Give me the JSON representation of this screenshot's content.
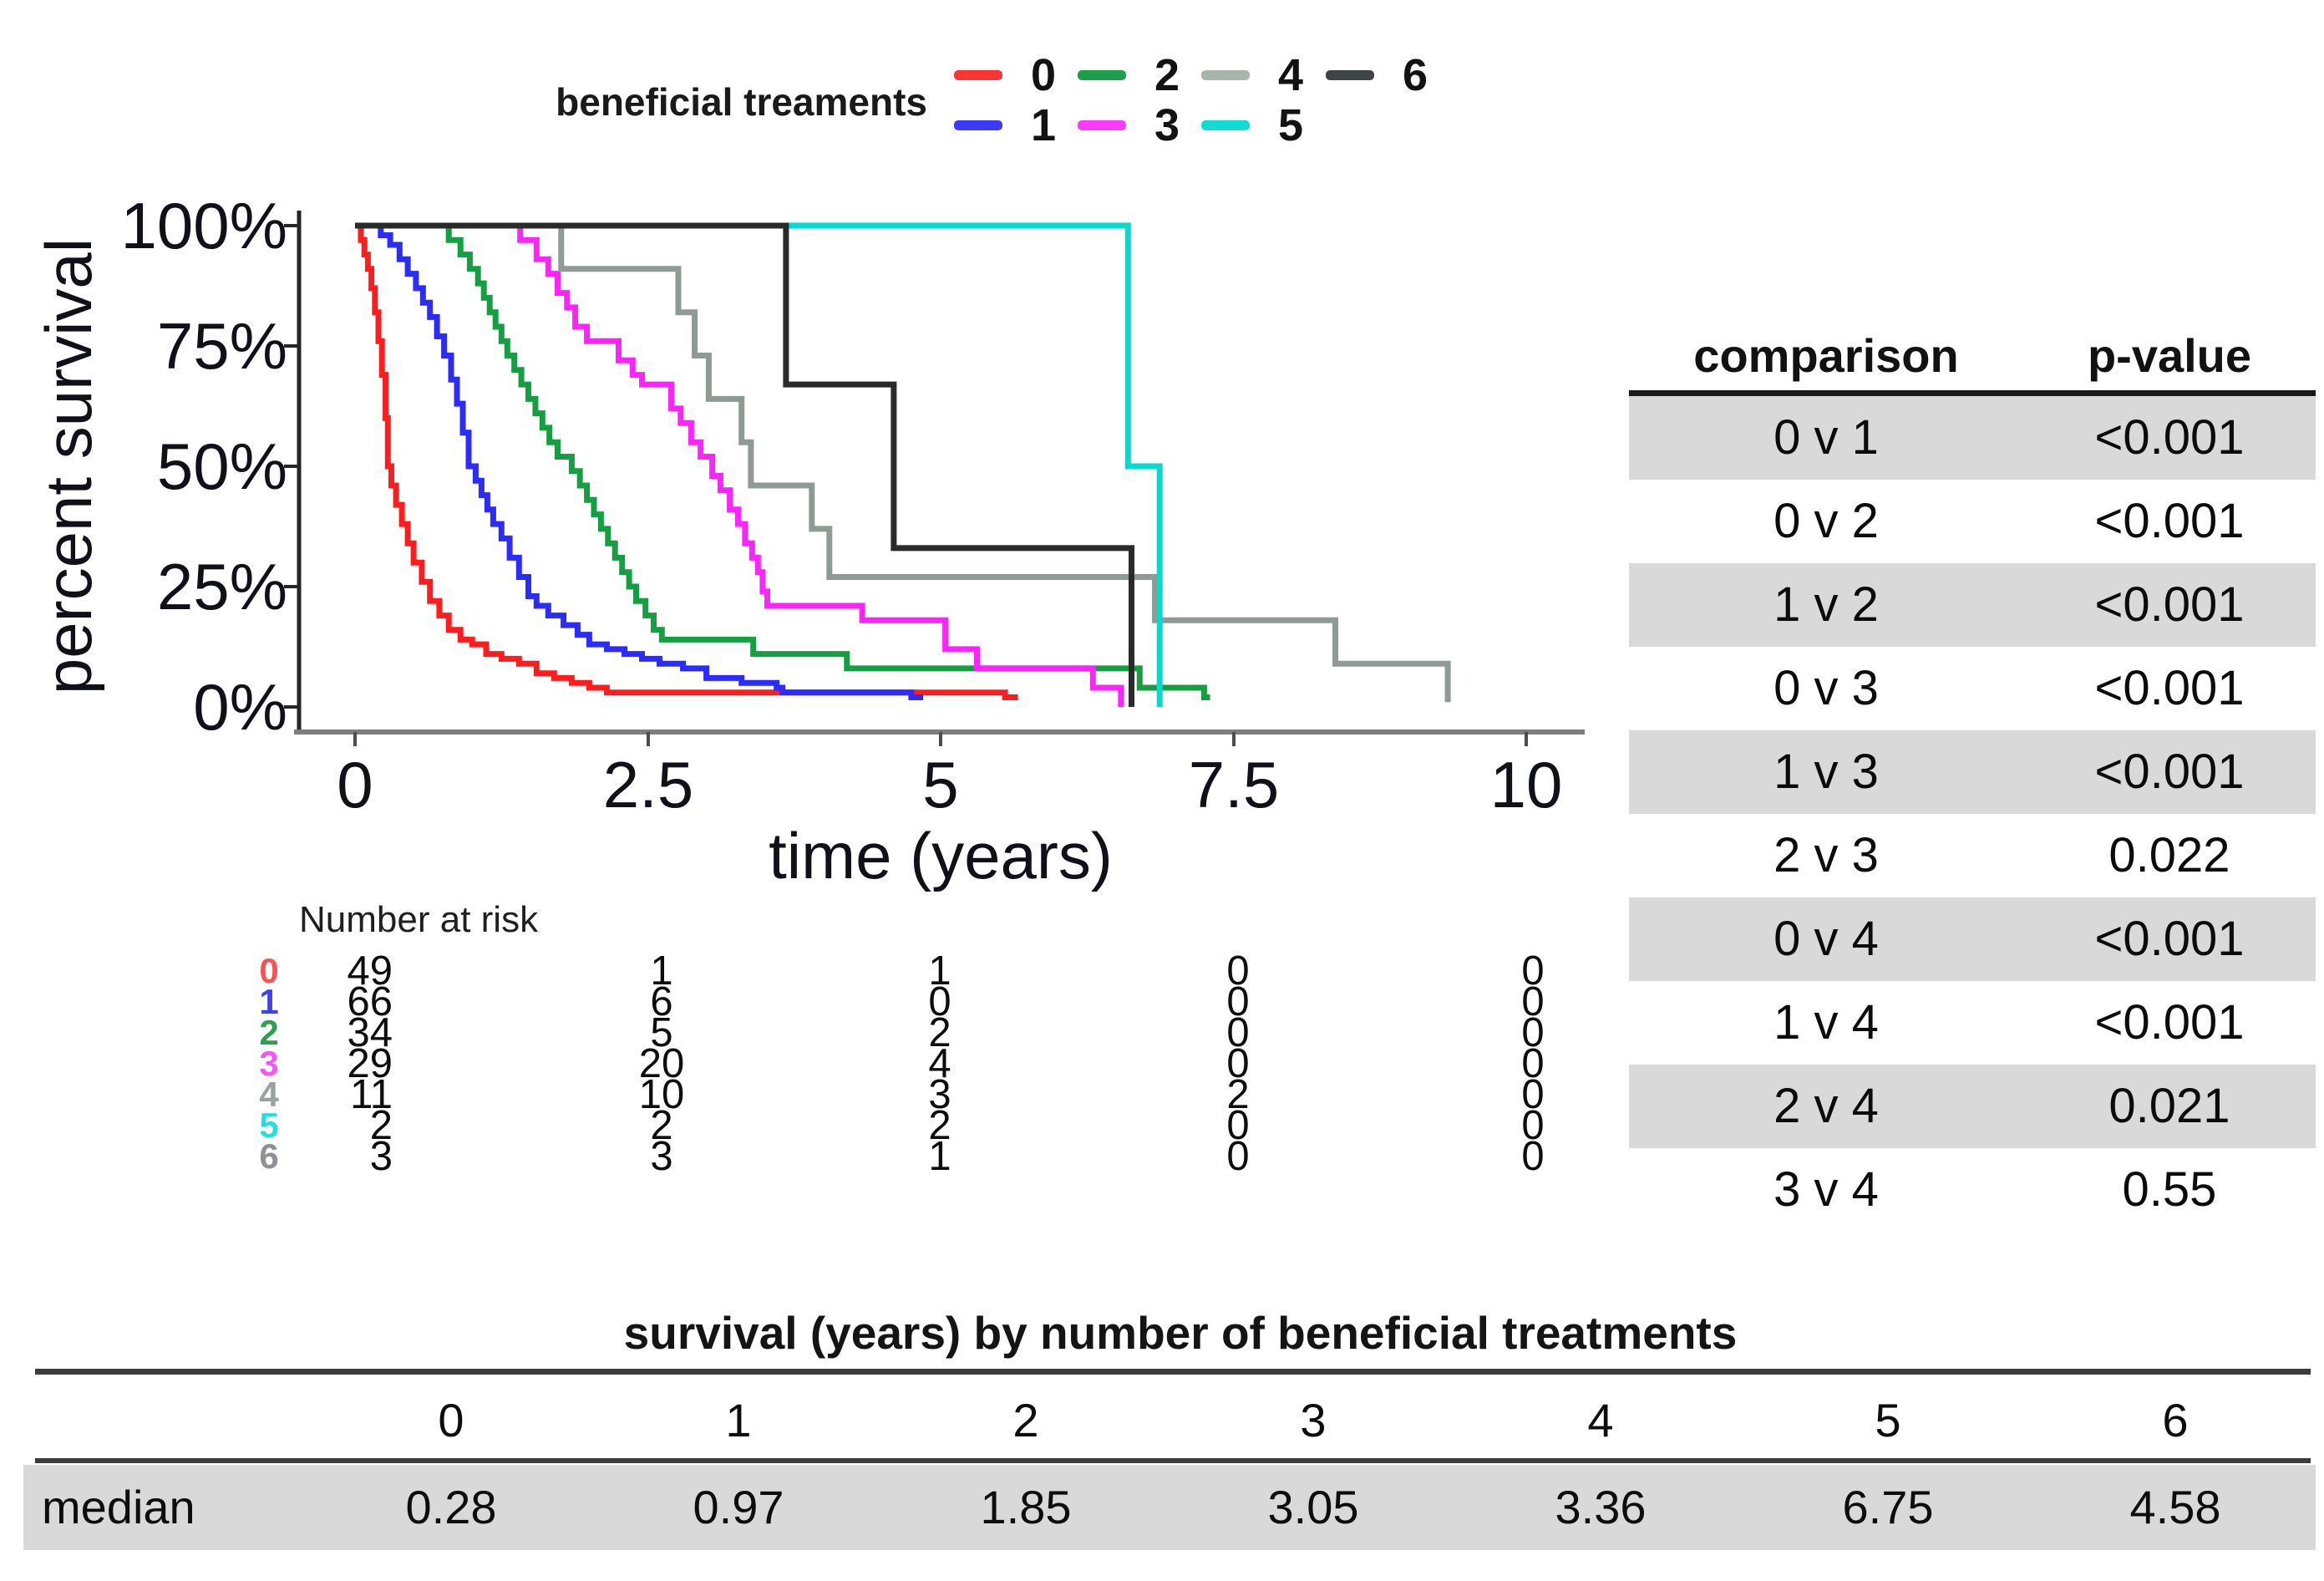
{
  "legend": {
    "title": "beneficial treaments",
    "rows": [
      {
        "items": [
          {
            "label": "0",
            "color": "#fb3535"
          },
          {
            "label": "2",
            "color": "#1d9e4a"
          },
          {
            "label": "4",
            "color": "#aab4af"
          },
          {
            "label": "6",
            "color": "#3f4547"
          }
        ]
      },
      {
        "items": [
          {
            "label": "1",
            "color": "#3a3afc"
          },
          {
            "label": "3",
            "color": "#fb3bfb"
          },
          {
            "label": "5",
            "color": "#11dcd4"
          }
        ]
      }
    ]
  },
  "chart_data": {
    "type": "line",
    "subtype": "kaplan-meier-step-curves",
    "title": "",
    "xlabel": "time (years)",
    "ylabel": "percent survival",
    "xlim": [
      0,
      10
    ],
    "ylim": [
      0,
      100
    ],
    "grid": false,
    "legend_position": "top",
    "x_tick_labels": [
      "0",
      "2.5",
      "5",
      "7.5",
      "10"
    ],
    "y_tick_labels": [
      "100%",
      "75%",
      "50%",
      "25%",
      "0%"
    ],
    "x_ticks": [
      0,
      2.5,
      5,
      7.5,
      10
    ],
    "y_ticks": [
      100,
      75,
      50,
      25,
      0
    ],
    "series": [
      {
        "name": "0",
        "color": "#fc1e1e",
        "median_years": 0.28,
        "end": 5.66,
        "points": [
          [
            0,
            100
          ],
          [
            0.05,
            97
          ],
          [
            0.08,
            94
          ],
          [
            0.11,
            91
          ],
          [
            0.14,
            87
          ],
          [
            0.17,
            82
          ],
          [
            0.2,
            76
          ],
          [
            0.23,
            69
          ],
          [
            0.26,
            60
          ],
          [
            0.28,
            50
          ],
          [
            0.31,
            46
          ],
          [
            0.35,
            42
          ],
          [
            0.4,
            38
          ],
          [
            0.45,
            34
          ],
          [
            0.5,
            30
          ],
          [
            0.57,
            26
          ],
          [
            0.64,
            22
          ],
          [
            0.72,
            19
          ],
          [
            0.8,
            16
          ],
          [
            0.9,
            14
          ],
          [
            1.0,
            13
          ],
          [
            1.12,
            11
          ],
          [
            1.25,
            10
          ],
          [
            1.4,
            9
          ],
          [
            1.55,
            7
          ],
          [
            1.7,
            6
          ],
          [
            1.85,
            5
          ],
          [
            2.0,
            4
          ],
          [
            2.15,
            3
          ],
          [
            5.55,
            2
          ]
        ]
      },
      {
        "name": "1",
        "color": "#2b2bfa",
        "median_years": 0.97,
        "end": 4.85,
        "points": [
          [
            0,
            100
          ],
          [
            0.22,
            98
          ],
          [
            0.3,
            96
          ],
          [
            0.38,
            93
          ],
          [
            0.45,
            90
          ],
          [
            0.52,
            87
          ],
          [
            0.58,
            84
          ],
          [
            0.64,
            81
          ],
          [
            0.7,
            77
          ],
          [
            0.76,
            73
          ],
          [
            0.82,
            68
          ],
          [
            0.87,
            63
          ],
          [
            0.92,
            57
          ],
          [
            0.97,
            50
          ],
          [
            1.03,
            47
          ],
          [
            1.08,
            44
          ],
          [
            1.13,
            41
          ],
          [
            1.18,
            38
          ],
          [
            1.25,
            35
          ],
          [
            1.32,
            31
          ],
          [
            1.4,
            27
          ],
          [
            1.48,
            23
          ],
          [
            1.55,
            21
          ],
          [
            1.65,
            19
          ],
          [
            1.78,
            17
          ],
          [
            1.9,
            15
          ],
          [
            2.0,
            13
          ],
          [
            2.15,
            12
          ],
          [
            2.3,
            11
          ],
          [
            2.45,
            10
          ],
          [
            2.6,
            9
          ],
          [
            2.8,
            8
          ],
          [
            3.0,
            6
          ],
          [
            3.3,
            5
          ],
          [
            3.6,
            4
          ],
          [
            3.65,
            3
          ],
          [
            4.75,
            2
          ]
        ]
      },
      {
        "name": "2",
        "color": "#169e42",
        "median_years": 1.85,
        "end": 7.3,
        "points": [
          [
            0,
            100
          ],
          [
            0.8,
            97
          ],
          [
            0.9,
            94
          ],
          [
            0.98,
            91
          ],
          [
            1.05,
            88
          ],
          [
            1.1,
            85
          ],
          [
            1.15,
            82
          ],
          [
            1.2,
            79
          ],
          [
            1.25,
            76
          ],
          [
            1.3,
            73
          ],
          [
            1.36,
            70
          ],
          [
            1.42,
            67
          ],
          [
            1.48,
            64
          ],
          [
            1.54,
            61
          ],
          [
            1.6,
            58
          ],
          [
            1.66,
            55
          ],
          [
            1.73,
            52
          ],
          [
            1.85,
            49
          ],
          [
            1.92,
            46
          ],
          [
            1.98,
            43
          ],
          [
            2.04,
            40
          ],
          [
            2.1,
            37
          ],
          [
            2.16,
            34
          ],
          [
            2.22,
            31
          ],
          [
            2.28,
            28
          ],
          [
            2.34,
            25
          ],
          [
            2.4,
            22
          ],
          [
            2.48,
            19
          ],
          [
            2.55,
            16
          ],
          [
            2.62,
            14
          ],
          [
            3.4,
            11
          ],
          [
            4.2,
            8
          ],
          [
            6.7,
            4
          ],
          [
            7.25,
            2
          ]
        ]
      },
      {
        "name": "3",
        "color": "#fb24fb",
        "median_years": 3.05,
        "end": 6.54,
        "points": [
          [
            0,
            100
          ],
          [
            1.41,
            97
          ],
          [
            1.55,
            93
          ],
          [
            1.65,
            90
          ],
          [
            1.73,
            86
          ],
          [
            1.81,
            83
          ],
          [
            1.88,
            79
          ],
          [
            1.98,
            76
          ],
          [
            2.25,
            72
          ],
          [
            2.37,
            69
          ],
          [
            2.45,
            67
          ],
          [
            2.7,
            62
          ],
          [
            2.78,
            59
          ],
          [
            2.87,
            55
          ],
          [
            2.95,
            52
          ],
          [
            3.05,
            48
          ],
          [
            3.12,
            45
          ],
          [
            3.2,
            41
          ],
          [
            3.27,
            38
          ],
          [
            3.33,
            34
          ],
          [
            3.39,
            31
          ],
          [
            3.44,
            28
          ],
          [
            3.48,
            24
          ],
          [
            3.52,
            21
          ],
          [
            4.33,
            18
          ],
          [
            5.04,
            12
          ],
          [
            5.31,
            8
          ],
          [
            6.3,
            4
          ],
          [
            6.54,
            0
          ]
        ]
      },
      {
        "name": "4",
        "color": "#8f9a94",
        "median_years": 3.36,
        "end": 9.33,
        "points": [
          [
            0,
            100
          ],
          [
            1.76,
            91
          ],
          [
            2.76,
            82
          ],
          [
            2.9,
            73
          ],
          [
            3.02,
            64
          ],
          [
            3.3,
            55
          ],
          [
            3.38,
            46
          ],
          [
            3.9,
            37
          ],
          [
            4.05,
            27
          ],
          [
            6.83,
            18
          ],
          [
            8.37,
            9
          ],
          [
            9.33,
            1
          ]
        ]
      },
      {
        "name": "5",
        "color": "#00dcd2",
        "median_years": 6.75,
        "end": 6.87,
        "points": [
          [
            0,
            100
          ],
          [
            6.6,
            50
          ],
          [
            6.87,
            0
          ]
        ]
      },
      {
        "name": "6",
        "color": "#2a2a2a",
        "median_years": 4.58,
        "end": 6.63,
        "points": [
          [
            0,
            100
          ],
          [
            3.68,
            67
          ],
          [
            4.6,
            33
          ],
          [
            6.63,
            0
          ]
        ]
      }
    ]
  },
  "risk_table": {
    "heading": "Number at risk",
    "time_points": [
      "0",
      "2.5",
      "5",
      "7.5",
      "10"
    ],
    "rows": [
      {
        "group": "0",
        "color": "#fa5252",
        "counts": [
          "49",
          "1",
          "1",
          "0",
          "0"
        ]
      },
      {
        "group": "1",
        "color": "#4040f0",
        "counts": [
          "66",
          "6",
          "0",
          "0",
          "0"
        ]
      },
      {
        "group": "2",
        "color": "#2f9e4f",
        "counts": [
          "34",
          "5",
          "2",
          "0",
          "0"
        ]
      },
      {
        "group": "3",
        "color": "#f556f5",
        "counts": [
          "29",
          "20",
          "4",
          "0",
          "0"
        ]
      },
      {
        "group": "4",
        "color": "#9aa29e",
        "counts": [
          "11",
          "10",
          "3",
          "2",
          "0"
        ]
      },
      {
        "group": "5",
        "color": "#25dede",
        "counts": [
          "2",
          "2",
          "2",
          "0",
          "0"
        ]
      },
      {
        "group": "6",
        "color": "#8b9195",
        "counts": [
          "3",
          "3",
          "1",
          "0",
          "0"
        ]
      }
    ]
  },
  "comparison_table": {
    "headers": {
      "comparison": "comparison",
      "p_value": "p-value"
    },
    "stripe_color": "#d9d9d9",
    "rows": [
      {
        "comparison": "0 v 1",
        "p": "<0.001"
      },
      {
        "comparison": "0 v 2",
        "p": "<0.001"
      },
      {
        "comparison": "1 v 2",
        "p": "<0.001"
      },
      {
        "comparison": "0 v 3",
        "p": "<0.001"
      },
      {
        "comparison": "1 v 3",
        "p": "<0.001"
      },
      {
        "comparison": "2 v 3",
        "p": "0.022"
      },
      {
        "comparison": "0 v 4",
        "p": "<0.001"
      },
      {
        "comparison": "1 v 4",
        "p": "<0.001"
      },
      {
        "comparison": "2 v 4",
        "p": "0.021"
      },
      {
        "comparison": "3 v 4",
        "p": "0.55"
      }
    ]
  },
  "median_table": {
    "title": "survival (years) by number of beneficial treatments",
    "columns": [
      "0",
      "1",
      "2",
      "3",
      "4",
      "5",
      "6"
    ],
    "row_label": "median",
    "values": [
      "0.28",
      "0.97",
      "1.85",
      "3.05",
      "3.36",
      "6.75",
      "4.58"
    ],
    "stripe_color": "#d9d9d9"
  }
}
